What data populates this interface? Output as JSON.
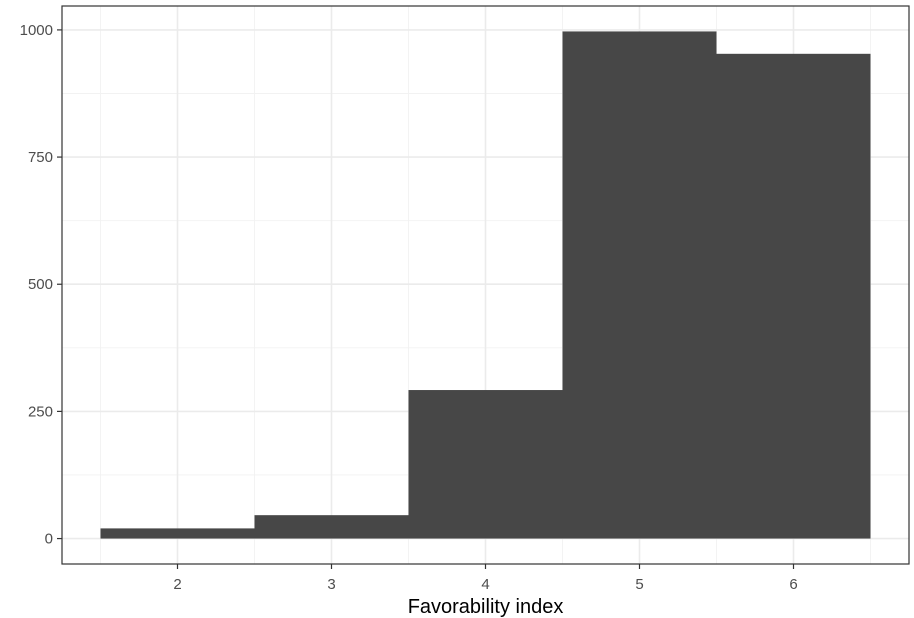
{
  "chart_data": {
    "type": "bar",
    "x": [
      2,
      3,
      4,
      5,
      6
    ],
    "values": [
      20,
      46,
      292,
      997,
      953
    ],
    "bin_width": 1,
    "title": "",
    "xlabel": "Favorability index",
    "ylabel": "",
    "xlim": [
      1.25,
      6.75
    ],
    "ylim": [
      -50,
      1047
    ],
    "x_ticks": [
      2,
      3,
      4,
      5,
      6
    ],
    "x_tick_labels": [
      "2",
      "3",
      "4",
      "5",
      "6"
    ],
    "y_ticks": [
      0,
      250,
      500,
      750,
      1000
    ],
    "y_tick_labels": [
      "0",
      "250",
      "500",
      "750",
      "1000"
    ],
    "grid": true,
    "legend": "none",
    "colors": {
      "bar_fill": "#474747",
      "panel_border": "#333333",
      "background": "#ffffff"
    }
  }
}
